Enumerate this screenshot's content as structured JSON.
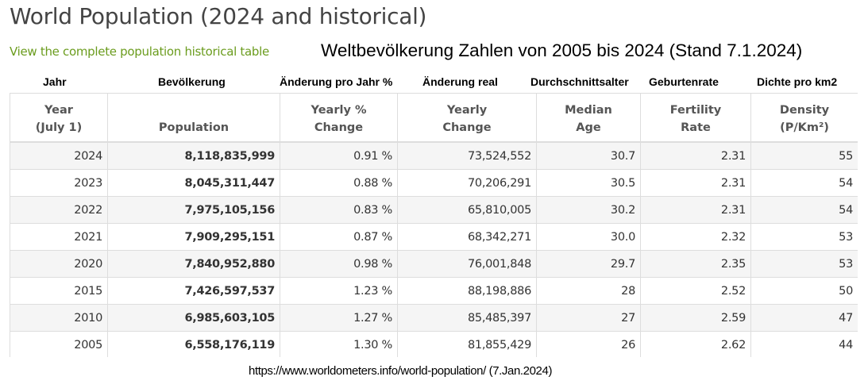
{
  "title": "World Population (2024 and historical)",
  "link": "View the complete population historical table",
  "subtitle": "Weltbevölkerung Zahlen von 2005 bis 2024 (Stand 7.1.2024)",
  "german_headers": [
    "Jahr",
    "Bevölkerung",
    "Änderung pro Jahr %",
    "Änderung real",
    "Durchschnittsalter",
    "Geburtenrate",
    "Dichte pro km2"
  ],
  "headers": [
    [
      "Year",
      "(July 1)"
    ],
    [
      "",
      "Population"
    ],
    [
      "Yearly %",
      "Change"
    ],
    [
      "Yearly",
      "Change"
    ],
    [
      "Median",
      "Age"
    ],
    [
      "Fertility",
      "Rate"
    ],
    [
      "Density",
      "(P/Km²)"
    ]
  ],
  "rows": [
    [
      "2024",
      "8,118,835,999",
      "0.91 %",
      "73,524,552",
      "30.7",
      "2.31",
      "55"
    ],
    [
      "2023",
      "8,045,311,447",
      "0.88 %",
      "70,206,291",
      "30.5",
      "2.31",
      "54"
    ],
    [
      "2022",
      "7,975,105,156",
      "0.83 %",
      "65,810,005",
      "30.2",
      "2.31",
      "54"
    ],
    [
      "2021",
      "7,909,295,151",
      "0.87 %",
      "68,342,271",
      "30.0",
      "2.32",
      "53"
    ],
    [
      "2020",
      "7,840,952,880",
      "0.98 %",
      "76,001,848",
      "29.7",
      "2.35",
      "53"
    ],
    [
      "2015",
      "7,426,597,537",
      "1.23 %",
      "88,198,886",
      "28",
      "2.52",
      "50"
    ],
    [
      "2010",
      "6,985,603,105",
      "1.27 %",
      "85,485,397",
      "27",
      "2.59",
      "47"
    ],
    [
      "2005",
      "6,558,176,119",
      "1.30 %",
      "81,855,429",
      "26",
      "2.62",
      "44"
    ]
  ],
  "source": "https://www.worldometers.info/world-population/ (7.Jan.2024)",
  "colors": {
    "link": "#6b9c1e",
    "title": "#444444",
    "stripe": "#f5f5f5"
  }
}
